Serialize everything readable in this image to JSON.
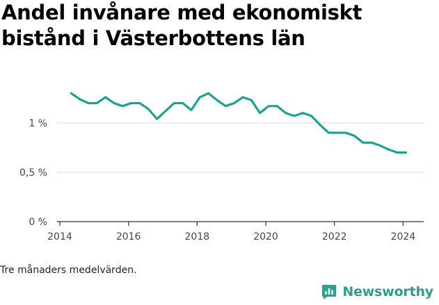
{
  "chart_data": {
    "type": "line",
    "title": "Andel invånare med ekonomiskt bistånd i Västerbottens län",
    "xlabel": "",
    "ylabel": "",
    "x_ticks": [
      2014,
      2016,
      2018,
      2020,
      2022,
      2024
    ],
    "x_tick_labels": [
      "2014",
      "2016",
      "2018",
      "2020",
      "2022",
      "2024"
    ],
    "y_ticks": [
      0,
      0.5,
      1
    ],
    "y_tick_labels": [
      "0 %",
      "0,5 %",
      "1 %"
    ],
    "xlim": [
      2013.92,
      2024.6
    ],
    "ylim": [
      0,
      1.4
    ],
    "grid": true,
    "color": "#1aa391",
    "series": [
      {
        "x": [
          2014.33,
          2014.58,
          2014.83,
          2015.08,
          2015.33,
          2015.58,
          2015.83,
          2016.08,
          2016.33,
          2016.58,
          2016.83,
          2017.08,
          2017.33,
          2017.58,
          2017.83,
          2018.08,
          2018.33,
          2018.58,
          2018.83,
          2019.08,
          2019.33,
          2019.58,
          2019.83,
          2020.08,
          2020.33,
          2020.58,
          2020.83,
          2021.08,
          2021.33,
          2021.58,
          2021.83,
          2022.08,
          2022.33,
          2022.58,
          2022.83,
          2023.08,
          2023.33,
          2023.58,
          2023.83,
          2024.08
        ],
        "y": [
          1.3,
          1.24,
          1.2,
          1.2,
          1.26,
          1.2,
          1.17,
          1.2,
          1.2,
          1.14,
          1.04,
          1.12,
          1.2,
          1.2,
          1.13,
          1.26,
          1.3,
          1.23,
          1.17,
          1.2,
          1.26,
          1.23,
          1.1,
          1.17,
          1.17,
          1.1,
          1.07,
          1.1,
          1.07,
          0.98,
          0.9,
          0.9,
          0.9,
          0.87,
          0.8,
          0.8,
          0.77,
          0.73,
          0.7,
          0.7
        ]
      }
    ]
  },
  "footnote": "Tre månaders medelvärden.",
  "brand": {
    "name": "Newsworthy",
    "icon": "newsworthy-logo-icon",
    "color": "#2d9d8f"
  }
}
